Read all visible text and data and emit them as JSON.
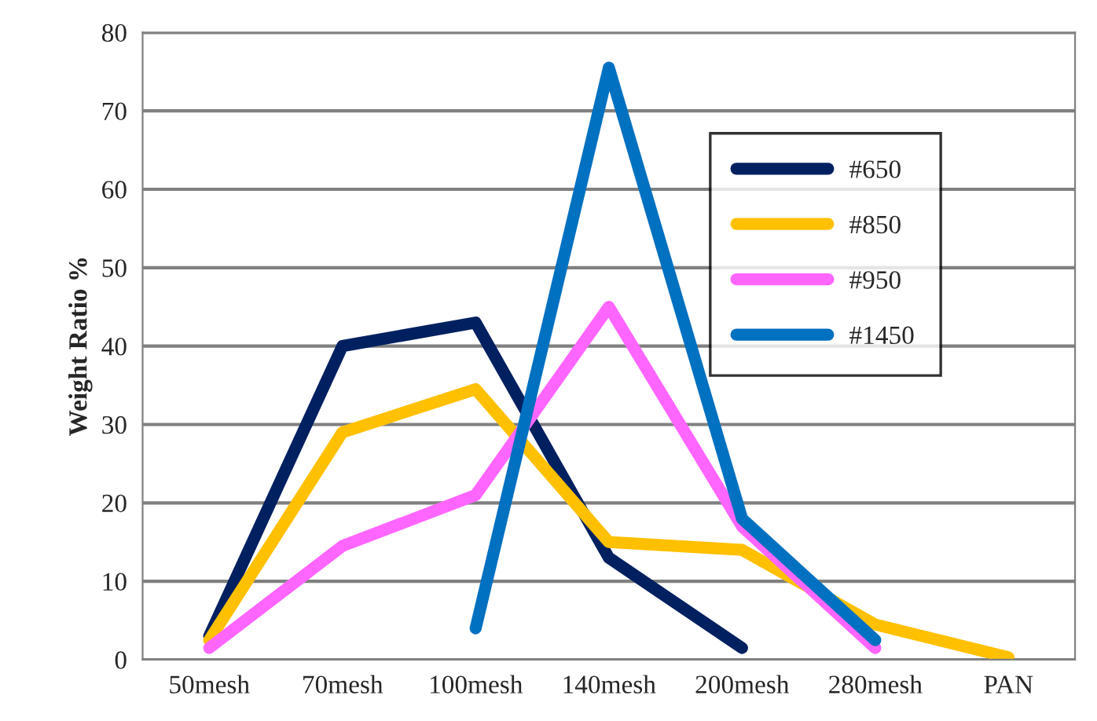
{
  "chart_data": {
    "type": "line",
    "ylabel": "Weight Ratio %",
    "categories": [
      "50mesh",
      "70mesh",
      "100mesh",
      "140mesh",
      "200mesh",
      "280mesh",
      "PAN"
    ],
    "series": [
      {
        "name": "#650",
        "color": "#002060",
        "values": [
          3,
          40,
          43,
          13,
          1.5,
          null,
          null
        ]
      },
      {
        "name": "#850",
        "color": "#ffc000",
        "values": [
          2.5,
          29,
          34.5,
          15,
          14,
          4.5,
          0.3
        ]
      },
      {
        "name": "#950",
        "color": "#ff66ff",
        "values": [
          1.5,
          14.5,
          21,
          45,
          17,
          1.5,
          null
        ]
      },
      {
        "name": "#1450",
        "color": "#0070c0",
        "values": [
          null,
          null,
          4,
          75.5,
          18,
          2.5,
          null
        ]
      }
    ],
    "ylim": [
      0,
      80
    ],
    "yticks": [
      0,
      10,
      20,
      30,
      40,
      50,
      60,
      70,
      80
    ],
    "grid": "y",
    "legend": "top right",
    "marker": "none",
    "line_style": "solid"
  }
}
